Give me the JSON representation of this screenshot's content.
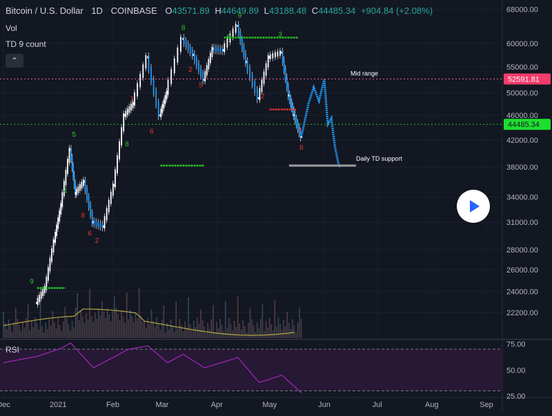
{
  "header": {
    "symbol": "Bitcoin / U.S. Dollar",
    "interval": "1D",
    "exchange": "COINBASE",
    "open_label": "O",
    "open": "43571.89",
    "high_label": "H",
    "high": "44649.89",
    "low_label": "L",
    "low": "43188.48",
    "close_label": "C",
    "close": "44485.34",
    "change": "+904.84 (+2.08%)"
  },
  "indicators": {
    "vol_label": "Vol",
    "td_label": "TD 9 count",
    "rsi_label": "RSI",
    "collapse_icon": "chevron-up-icon"
  },
  "annotations": {
    "mid_range": "Mid range",
    "td_support": "Daily TD support"
  },
  "price_tags": {
    "mid_range_price": "52591.81",
    "current_price": "44485.34"
  },
  "colors": {
    "background": "#131722",
    "candle_up": "#ffffff",
    "candle_down": "#2196f3",
    "td_green": "#26c926",
    "td_red": "#e53935",
    "mid_line": "#f06292",
    "current_line": "#26c926",
    "rsi_line": "#9c27b0",
    "volume_ma": "#b5a642",
    "mid_tag": "#f23c6b",
    "current_tag": "#1ede2f"
  },
  "chart_data": [
    {
      "type": "line",
      "title": "Bitcoin / U.S. Dollar 1D COINBASE",
      "price_scale": "log",
      "ylim": [
        20200,
        69000
      ],
      "y_ticks": [
        68000,
        60000,
        55000,
        50000,
        46000,
        42000,
        38000,
        34000,
        31000,
        28000,
        26000,
        24000,
        22200
      ],
      "y_tick_labels": [
        "68000.00",
        "60000.00",
        "55000.00",
        "50000.00",
        "46000.00",
        "42000.00",
        "38000.00",
        "34000.00",
        "31000.00",
        "28000.00",
        "26000.00",
        "24000.00",
        "22200.00"
      ],
      "x_tick_labels": [
        "Dec",
        "2021",
        "Feb",
        "Mar",
        "Apr",
        "May",
        "Jun",
        "Jul",
        "Aug",
        "Sep"
      ],
      "x_ticks": [
        "2020-12-01",
        "2021-01-01",
        "2021-02-01",
        "2021-03-01",
        "2021-04-01",
        "2021-05-01",
        "2021-06-01",
        "2021-07-01",
        "2021-08-01",
        "2021-09-01"
      ],
      "x_range": [
        "2020-11-29",
        "2021-09-10"
      ],
      "series": [
        {
          "name": "",
          "style": "candles",
          "x": [
            "2020-12-20",
            "2020-12-25",
            "2020-12-30",
            "2021-01-03",
            "2021-01-08",
            "2021-01-11",
            "2021-01-16",
            "2021-01-21",
            "2021-01-27",
            "2021-02-02",
            "2021-02-08",
            "2021-02-13",
            "2021-02-21",
            "2021-02-28",
            "2021-03-04",
            "2021-03-13",
            "2021-03-19",
            "2021-03-25",
            "2021-03-30",
            "2021-04-05",
            "2021-04-13",
            "2021-04-18",
            "2021-04-25",
            "2021-05-01",
            "2021-05-08",
            "2021-05-12",
            "2021-05-15",
            "2021-05-19"
          ],
          "y": [
            23000,
            24300,
            28900,
            33000,
            40500,
            34500,
            36000,
            31000,
            30500,
            35500,
            46000,
            48000,
            57000,
            46000,
            50000,
            61000,
            57500,
            52500,
            58800,
            58500,
            64000,
            56000,
            49000,
            57000,
            58000,
            49500,
            46000,
            42500
          ]
        },
        {
          "name": "",
          "style": "projection",
          "x": [
            "2021-05-19",
            "2021-05-23",
            "2021-05-26",
            "2021-05-29",
            "2021-06-01",
            "2021-06-03",
            "2021-06-05",
            "2021-06-07",
            "2021-06-09",
            "2021-06-10"
          ],
          "y": [
            42500,
            48000,
            51000,
            48500,
            52500,
            44500,
            45500,
            41000,
            38500,
            38000
          ]
        },
        {
          "name": "",
          "style": "levels",
          "x": [
            "2020-12-20",
            "2021-02-28",
            "2021-04-05",
            "2021-05-01",
            "2021-05-12"
          ],
          "y": [
            24300,
            38200,
            61300,
            47000,
            38200
          ]
        },
        {
          "name": "RSI",
          "pane": "rsi",
          "ylim": [
            25,
            78
          ],
          "y_ticks": [
            75,
            50,
            25
          ],
          "y_tick_labels": [
            "75.00",
            "50.00",
            "25.00"
          ],
          "x": [
            "2020-12-01",
            "2020-12-20",
            "2021-01-03",
            "2021-01-08",
            "2021-01-21",
            "2021-02-10",
            "2021-02-21",
            "2021-03-04",
            "2021-03-13",
            "2021-03-25",
            "2021-04-13",
            "2021-04-25",
            "2021-05-08",
            "2021-05-19"
          ],
          "y": [
            57,
            63,
            71,
            76,
            52,
            70,
            73,
            57,
            65,
            52,
            62,
            38,
            45,
            28
          ]
        }
      ]
    }
  ]
}
